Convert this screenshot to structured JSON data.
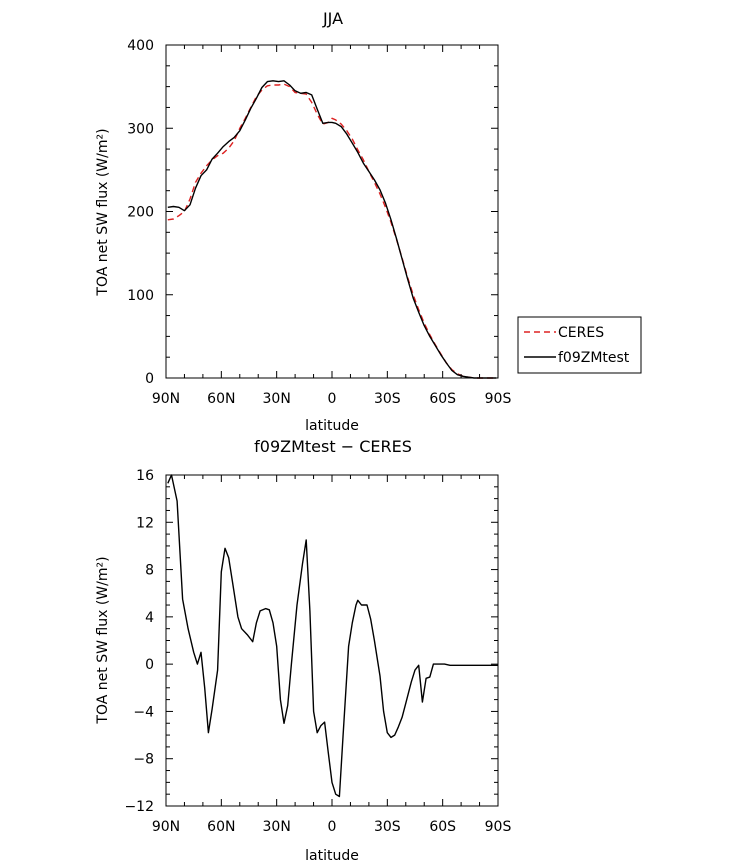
{
  "chart_data": [
    {
      "type": "line",
      "title": "JJA",
      "xlabel": "latitude",
      "ylabel": "TOA net SW flux (W/m²)",
      "xlim": [
        90,
        -90
      ],
      "ylim": [
        0,
        400
      ],
      "xticks": [
        90,
        60,
        30,
        0,
        -30,
        -60,
        -90
      ],
      "xtick_labels": [
        "90N",
        "60N",
        "30N",
        "0",
        "30S",
        "60S",
        "90S"
      ],
      "yticks": [
        0,
        100,
        200,
        300,
        400
      ],
      "ytick_labels": [
        "0",
        "100",
        "200",
        "300",
        "400"
      ],
      "legend": "outside-right",
      "series": [
        {
          "name": "CERES",
          "color": "#dd2222",
          "dash": "dashed",
          "points": [
            [
              89,
              190
            ],
            [
              86,
              191
            ],
            [
              83,
              195
            ],
            [
              80,
              200
            ],
            [
              77,
              215
            ],
            [
              74,
              235
            ],
            [
              71,
              246
            ],
            [
              68,
              255
            ],
            [
              65,
              262
            ],
            [
              62,
              267
            ],
            [
              59,
              270
            ],
            [
              56,
              276
            ],
            [
              53,
              285
            ],
            [
              50,
              300
            ],
            [
              47,
              312
            ],
            [
              44,
              325
            ],
            [
              41,
              338
            ],
            [
              38,
              346
            ],
            [
              35,
              351
            ],
            [
              32,
              352
            ],
            [
              29,
              352
            ],
            [
              26,
              353
            ],
            [
              23,
              350
            ],
            [
              20,
              343
            ],
            [
              17,
              342
            ],
            [
              14,
              341
            ],
            [
              11,
              331
            ],
            [
              8,
              317
            ],
            [
              5,
              305
            ],
            [
              2,
              307
            ],
            [
              0,
              312
            ],
            [
              -2,
              310
            ],
            [
              -5,
              305
            ],
            [
              -8,
              297
            ],
            [
              -11,
              287
            ],
            [
              -14,
              274
            ],
            [
              -17,
              262
            ],
            [
              -20,
              248
            ],
            [
              -23,
              235
            ],
            [
              -26,
              221
            ],
            [
              -29,
              205
            ],
            [
              -32,
              187
            ],
            [
              -35,
              166
            ],
            [
              -38,
              144
            ],
            [
              -41,
              121
            ],
            [
              -44,
              100
            ],
            [
              -47,
              82
            ],
            [
              -50,
              66
            ],
            [
              -53,
              52
            ],
            [
              -56,
              40
            ],
            [
              -59,
              29
            ],
            [
              -62,
              18
            ],
            [
              -65,
              10
            ],
            [
              -68,
              5
            ],
            [
              -71,
              2
            ],
            [
              -74,
              1
            ],
            [
              -77,
              0
            ],
            [
              -80,
              0
            ],
            [
              -83,
              0
            ],
            [
              -86,
              0
            ],
            [
              -89,
              0
            ]
          ]
        },
        {
          "name": "f09ZMtest",
          "color": "#000000",
          "dash": "solid",
          "points": [
            [
              89,
              205
            ],
            [
              86,
              206
            ],
            [
              83,
              205
            ],
            [
              80,
              201
            ],
            [
              77,
              208
            ],
            [
              74,
              228
            ],
            [
              71,
              243
            ],
            [
              68,
              250
            ],
            [
              65,
              263
            ],
            [
              62,
              270
            ],
            [
              59,
              278
            ],
            [
              56,
              284
            ],
            [
              53,
              289
            ],
            [
              50,
              297
            ],
            [
              47,
              310
            ],
            [
              44,
              324
            ],
            [
              41,
              336
            ],
            [
              38,
              349
            ],
            [
              35,
              356
            ],
            [
              32,
              357
            ],
            [
              29,
              356
            ],
            [
              26,
              357
            ],
            [
              23,
              352
            ],
            [
              20,
              345
            ],
            [
              17,
              342
            ],
            [
              14,
              343
            ],
            [
              11,
              340
            ],
            [
              8,
              323
            ],
            [
              5,
              306
            ],
            [
              2,
              307
            ],
            [
              0,
              307
            ],
            [
              -2,
              306
            ],
            [
              -5,
              302
            ],
            [
              -8,
              293
            ],
            [
              -11,
              282
            ],
            [
              -14,
              271
            ],
            [
              -17,
              258
            ],
            [
              -20,
              248
            ],
            [
              -23,
              238
            ],
            [
              -26,
              226
            ],
            [
              -29,
              210
            ],
            [
              -32,
              190
            ],
            [
              -35,
              167
            ],
            [
              -38,
              143
            ],
            [
              -41,
              119
            ],
            [
              -44,
              96
            ],
            [
              -47,
              79
            ],
            [
              -50,
              63
            ],
            [
              -53,
              50
            ],
            [
              -56,
              39
            ],
            [
              -59,
              28
            ],
            [
              -62,
              18
            ],
            [
              -65,
              9
            ],
            [
              -68,
              4
            ],
            [
              -71,
              2
            ],
            [
              -74,
              1
            ],
            [
              -77,
              0
            ],
            [
              -80,
              0
            ],
            [
              -83,
              0
            ],
            [
              -86,
              0
            ],
            [
              -89,
              0
            ]
          ]
        }
      ]
    },
    {
      "type": "line",
      "title": "f09ZMtest − CERES",
      "xlabel": "latitude",
      "ylabel": "TOA net SW flux (W/m²)",
      "xlim": [
        90,
        -90
      ],
      "ylim": [
        -12,
        16
      ],
      "xticks": [
        90,
        60,
        30,
        0,
        -30,
        -60,
        -90
      ],
      "xtick_labels": [
        "90N",
        "60N",
        "30N",
        "0",
        "30S",
        "60S",
        "90S"
      ],
      "yticks": [
        -12,
        -8,
        -4,
        0,
        4,
        8,
        12,
        16
      ],
      "ytick_labels": [
        "−12",
        "−8",
        "−4",
        "0",
        "4",
        "8",
        "12",
        "16"
      ],
      "series": [
        {
          "name": "",
          "color": "#000000",
          "dash": "solid",
          "points": [
            [
              89,
              15.3
            ],
            [
              87,
              16
            ],
            [
              84,
              13.8
            ],
            [
              81,
              5.5
            ],
            [
              78,
              3.0
            ],
            [
              75,
              1.0
            ],
            [
              73,
              0
            ],
            [
              71,
              1.0
            ],
            [
              69,
              -2.0
            ],
            [
              67,
              -5.8
            ],
            [
              65,
              -3.8
            ],
            [
              62,
              -0.5
            ],
            [
              60,
              7.8
            ],
            [
              58,
              9.8
            ],
            [
              56,
              9.0
            ],
            [
              54,
              7.0
            ],
            [
              51,
              4.0
            ],
            [
              49,
              3.0
            ],
            [
              46,
              2.5
            ],
            [
              43,
              1.9
            ],
            [
              41,
              3.5
            ],
            [
              39,
              4.5
            ],
            [
              36,
              4.7
            ],
            [
              34,
              4.6
            ],
            [
              32,
              3.5
            ],
            [
              30,
              1.5
            ],
            [
              28,
              -3.0
            ],
            [
              26,
              -5.0
            ],
            [
              24,
              -3.5
            ],
            [
              22,
              0
            ],
            [
              19,
              5.0
            ],
            [
              16,
              8.5
            ],
            [
              14,
              10.5
            ],
            [
              12,
              4.5
            ],
            [
              10,
              -4.0
            ],
            [
              8,
              -5.8
            ],
            [
              6,
              -5.2
            ],
            [
              4,
              -4.9
            ],
            [
              2,
              -7.5
            ],
            [
              0,
              -10.0
            ],
            [
              -2,
              -11.0
            ],
            [
              -4,
              -11.2
            ],
            [
              -6,
              -6.0
            ],
            [
              -9,
              1.5
            ],
            [
              -11,
              3.5
            ],
            [
              -13,
              5.0
            ],
            [
              -14,
              5.4
            ],
            [
              -16,
              5.0
            ],
            [
              -19,
              5.0
            ],
            [
              -21,
              3.8
            ],
            [
              -23,
              2.0
            ],
            [
              -26,
              -1.0
            ],
            [
              -28,
              -4.0
            ],
            [
              -30,
              -5.8
            ],
            [
              -32,
              -6.2
            ],
            [
              -34,
              -6.0
            ],
            [
              -36,
              -5.3
            ],
            [
              -38,
              -4.5
            ],
            [
              -40,
              -3.3
            ],
            [
              -43,
              -1.5
            ],
            [
              -45,
              -0.5
            ],
            [
              -47,
              -0.1
            ],
            [
              -49,
              -3.2
            ],
            [
              -51,
              -1.2
            ],
            [
              -53,
              -1.1
            ],
            [
              -55,
              0
            ],
            [
              -58,
              0
            ],
            [
              -61,
              0
            ],
            [
              -64,
              -0.1
            ],
            [
              -67,
              -0.1
            ],
            [
              -90,
              -0.1
            ]
          ]
        }
      ]
    }
  ]
}
